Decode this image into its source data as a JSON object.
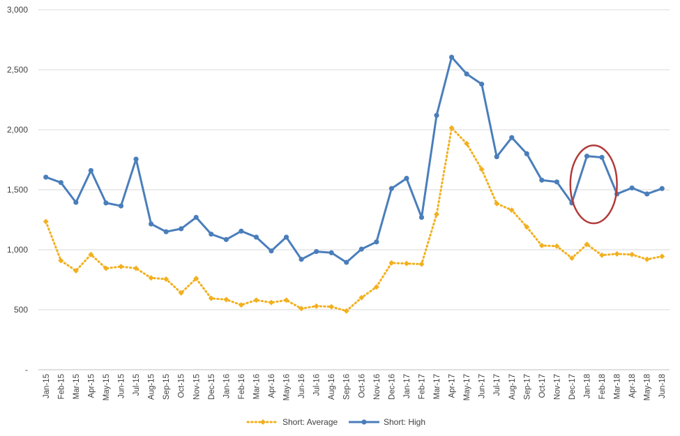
{
  "chart_data": {
    "type": "line",
    "title": "",
    "xlabel": "",
    "ylabel": "",
    "ylim": [
      0,
      3000
    ],
    "y_ticks": [
      {
        "value": 0,
        "label": "-"
      },
      {
        "value": 500,
        "label": "500"
      },
      {
        "value": 1000,
        "label": "1,000"
      },
      {
        "value": 1500,
        "label": "1,500"
      },
      {
        "value": 2000,
        "label": "2,000"
      },
      {
        "value": 2500,
        "label": "2,500"
      },
      {
        "value": 3000,
        "label": "3,000"
      }
    ],
    "grid": true,
    "legend_position": "bottom",
    "categories": [
      "Jan-15",
      "Feb-15",
      "Mar-15",
      "Apr-15",
      "May-15",
      "Jun-15",
      "Jul-15",
      "Aug-15",
      "Sep-15",
      "Oct-15",
      "Nov-15",
      "Dec-15",
      "Jan-16",
      "Feb-16",
      "Mar-16",
      "Apr-16",
      "May-16",
      "Jun-16",
      "Jul-16",
      "Aug-16",
      "Sep-16",
      "Oct-16",
      "Nov-16",
      "Dec-16",
      "Jan-17",
      "Feb-17",
      "Mar-17",
      "Apr-17",
      "May-17",
      "Jun-17",
      "Jul-17",
      "Aug-17",
      "Sep-17",
      "Oct-17",
      "Nov-17",
      "Dec-17",
      "Jan-18",
      "Feb-18",
      "Mar-18",
      "Apr-18",
      "May-18",
      "Jun-18"
    ],
    "series": [
      {
        "name": "Short: Average",
        "color": "#F2B01E",
        "line_style": "dotted",
        "marker": "diamond",
        "values": [
          1235,
          910,
          825,
          960,
          845,
          860,
          845,
          765,
          755,
          640,
          760,
          595,
          585,
          540,
          580,
          560,
          580,
          510,
          530,
          525,
          490,
          600,
          690,
          890,
          885,
          880,
          1295,
          2015,
          1885,
          1670,
          1385,
          1330,
          1190,
          1035,
          1030,
          930,
          1045,
          955,
          965,
          960,
          920,
          945
        ]
      },
      {
        "name": "Short: High",
        "color": "#4A7EBB",
        "line_style": "solid",
        "marker": "circle",
        "values": [
          1605,
          1560,
          1395,
          1660,
          1390,
          1365,
          1755,
          1215,
          1150,
          1175,
          1270,
          1130,
          1085,
          1155,
          1105,
          990,
          1105,
          920,
          985,
          975,
          895,
          1005,
          1065,
          1510,
          1595,
          1270,
          2120,
          2605,
          2465,
          2380,
          1775,
          1935,
          1800,
          1580,
          1565,
          1390,
          1780,
          1770,
          1465,
          1515,
          1465,
          1510
        ]
      }
    ],
    "annotation": {
      "shape": "ellipse",
      "color": "#B13A3A",
      "x_from": "Dec-17",
      "x_to": "Feb-18",
      "y_from": 1220,
      "y_to": 1870
    }
  }
}
